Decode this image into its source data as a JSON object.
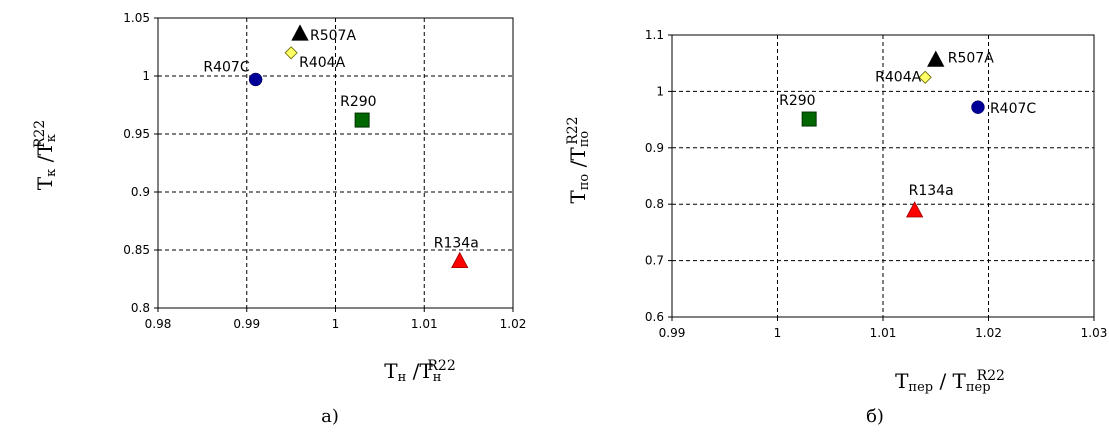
{
  "chart_data": [
    {
      "type": "scatter",
      "caption": "а)",
      "xlabel": {
        "main": "T",
        "sub": "н",
        "sep": " /T",
        "sub2": "н",
        "sup": "R22"
      },
      "ylabel": {
        "main": "T",
        "sub": "к",
        "sep": " /T",
        "sub2": "к",
        "sup": "R22"
      },
      "xlim": [
        0.98,
        1.02
      ],
      "ylim": [
        0.8,
        1.05
      ],
      "xticks": [
        "0.98",
        "0.99",
        "1",
        "1.01",
        "1.02"
      ],
      "yticks": [
        "0.8",
        "0.85",
        "0.9",
        "0.95",
        "1",
        "1.05"
      ],
      "grid": true,
      "points": [
        {
          "label": "R507A",
          "x": 0.996,
          "y": 1.036,
          "marker": "triangle",
          "color": "#000000"
        },
        {
          "label": "R404A",
          "x": 0.995,
          "y": 1.02,
          "marker": "diamond",
          "color": "#ffff66"
        },
        {
          "label": "R407C",
          "x": 0.991,
          "y": 0.997,
          "marker": "circle",
          "color": "#000099"
        },
        {
          "label": "R290",
          "x": 1.003,
          "y": 0.962,
          "marker": "square",
          "color": "#006600"
        },
        {
          "label": "R134a",
          "x": 1.014,
          "y": 0.84,
          "marker": "triangle",
          "color": "#ff0000"
        }
      ]
    },
    {
      "type": "scatter",
      "caption": "б)",
      "xlabel": {
        "main": "T",
        "sub": "пер",
        "sep": " / T",
        "sub2": "пер",
        "sup": "R22"
      },
      "ylabel": {
        "main": "T",
        "sub": "по",
        "sep": " /T",
        "sub2": "по",
        "sup": "R22"
      },
      "xlim": [
        0.99,
        1.03
      ],
      "ylim": [
        0.6,
        1.1
      ],
      "xticks": [
        "0.99",
        "1",
        "1.01",
        "1.02",
        "1.03"
      ],
      "yticks": [
        "0.6",
        "0.7",
        "0.8",
        "0.9",
        "1",
        "1.1"
      ],
      "grid": true,
      "points": [
        {
          "label": "R507A",
          "x": 1.015,
          "y": 1.055,
          "marker": "triangle",
          "color": "#000000"
        },
        {
          "label": "R404A",
          "x": 1.014,
          "y": 1.025,
          "marker": "diamond",
          "color": "#ffff66"
        },
        {
          "label": "R407C",
          "x": 1.019,
          "y": 0.972,
          "marker": "circle",
          "color": "#000099"
        },
        {
          "label": "R290",
          "x": 1.003,
          "y": 0.951,
          "marker": "square",
          "color": "#006600"
        },
        {
          "label": "R134a",
          "x": 1.013,
          "y": 0.788,
          "marker": "triangle",
          "color": "#ff0000"
        }
      ]
    }
  ]
}
